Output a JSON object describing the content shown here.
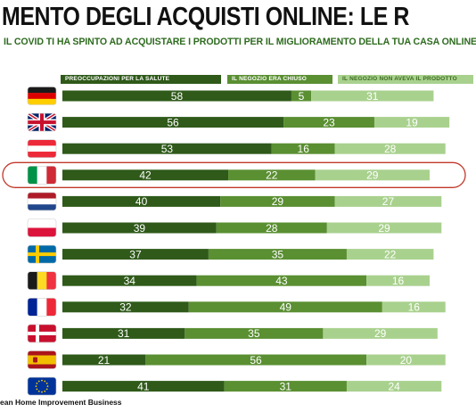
{
  "header": {
    "title": "MENTO DEGLI ACQUISTI ONLINE: LE RAGIONI IN EURO",
    "subtitle": "IL COVID TI HA SPINTO AD ACQUISTARE I PRODOTTI PER IL MIGLIORAMENTO DELLA TUA CASA ONLINE INVECE CHE IN"
  },
  "footer": {
    "source": "ean Home Improvement Business"
  },
  "chart_data": {
    "type": "bar",
    "orientation": "horizontal",
    "stacked": true,
    "unit": "%",
    "xlim": [
      0,
      100
    ],
    "grid": false,
    "legend_position": "top",
    "categories": [
      "DE",
      "UK",
      "AT",
      "IT",
      "NL",
      "PL",
      "SE",
      "BE",
      "FR",
      "DK",
      "ES",
      "EU"
    ],
    "category_flags": [
      "flag-germany",
      "flag-united-kingdom",
      "flag-austria",
      "flag-italy",
      "flag-netherlands",
      "flag-poland",
      "flag-sweden",
      "flag-belgium",
      "flag-france",
      "flag-denmark",
      "flag-spain",
      "flag-european-union"
    ],
    "highlight": "IT",
    "series": [
      {
        "name": "PREOCCUPAZIONI PER LA SALUTE",
        "color": "#2f5a1a",
        "values": [
          58,
          56,
          53,
          42,
          40,
          39,
          37,
          34,
          32,
          31,
          21,
          41
        ]
      },
      {
        "name": "IL NEGOZIO ERA CHIUSO",
        "color": "#5a8f32",
        "values": [
          5,
          23,
          16,
          22,
          29,
          28,
          35,
          43,
          49,
          35,
          56,
          31
        ]
      },
      {
        "name": "IL NEGOZIO NON AVEVA IL PRODOTTO",
        "color": "#a9d18e",
        "values": [
          31,
          19,
          28,
          29,
          27,
          29,
          22,
          16,
          16,
          29,
          20,
          24
        ]
      }
    ]
  },
  "colors": {
    "highlight_ring": "#c0392b"
  }
}
